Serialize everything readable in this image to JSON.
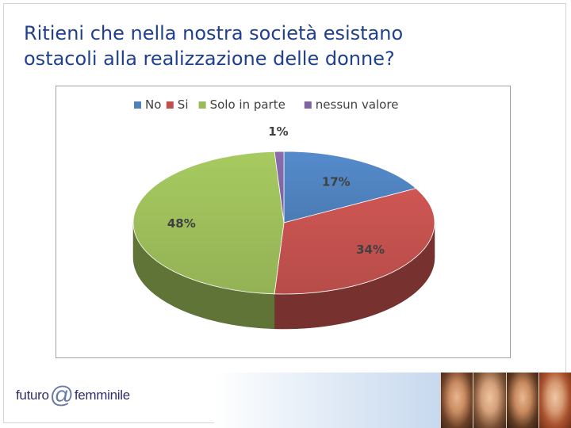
{
  "title": {
    "line1": "Ritieni che nella nostra società esistano",
    "line2": "ostacoli alla realizzazione delle donne?"
  },
  "chart_data": {
    "type": "pie",
    "title": "",
    "legend_position": "top",
    "categories": [
      "No",
      "Si",
      "Solo in parte",
      "nessun valore"
    ],
    "values": [
      17,
      34,
      48,
      1
    ],
    "labels": [
      "17%",
      "34%",
      "48%",
      "1%"
    ],
    "colors": [
      "#4f81bd",
      "#c0504d",
      "#9bbb59",
      "#8064a2"
    ]
  },
  "footer": {
    "logo_text_left": "futuro",
    "logo_at": "@",
    "logo_text_right": "femminile"
  }
}
